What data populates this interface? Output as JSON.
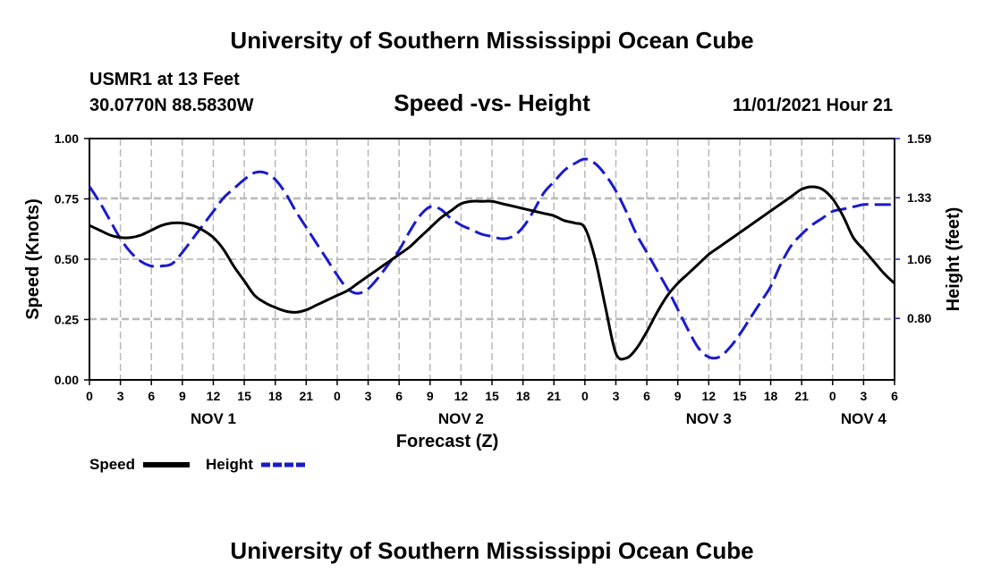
{
  "header": {
    "title": "University of Southern Mississippi Ocean Cube",
    "station": "USMR1 at 13 Feet",
    "coords": "30.0770N  88.5830W",
    "datetime": "11/01/2021 Hour 21",
    "footer_title": "University of Southern Mississippi Ocean Cube"
  },
  "colors": {
    "speed": "#000000",
    "height": "#1a1acc",
    "grid": "#b8b8b8"
  },
  "chart_data": {
    "type": "line",
    "title": "Speed -vs- Height",
    "xlabel": "Forecast (Z)",
    "ylabel": "Speed (Knots)",
    "y2label": "Height (feet)",
    "x_range_hours": [
      0,
      78
    ],
    "ylim": [
      0,
      1.0
    ],
    "y2lim": [
      0.53,
      1.59
    ],
    "x_tick_labels": [
      "0",
      "3",
      "6",
      "9",
      "12",
      "15",
      "18",
      "21",
      "0",
      "3",
      "6",
      "9",
      "12",
      "15",
      "18",
      "21",
      "0",
      "3",
      "6",
      "9",
      "12",
      "15",
      "18",
      "21",
      "0",
      "3",
      "6"
    ],
    "day_labels": [
      {
        "label": "NOV 1",
        "hour": 12
      },
      {
        "label": "NOV 2",
        "hour": 36
      },
      {
        "label": "NOV 3",
        "hour": 60
      },
      {
        "label": "NOV 4",
        "hour": 75
      }
    ],
    "y_ticks": [
      "0.00",
      "0.25",
      "0.50",
      "0.75",
      "1.00"
    ],
    "y_tick_values": [
      0,
      0.25,
      0.5,
      0.75,
      1.0
    ],
    "y2_ticks": [
      "0.80",
      "1.06",
      "1.33",
      "1.59"
    ],
    "y2_tick_values": [
      0.8,
      1.06,
      1.33,
      1.59
    ],
    "series": [
      {
        "name": "Speed",
        "axis": "left",
        "x": [
          0,
          1,
          2,
          3,
          4,
          5,
          6,
          7,
          8,
          9,
          10,
          11,
          12,
          13,
          14,
          15,
          16,
          17,
          18,
          19,
          20,
          21,
          22,
          23,
          24,
          25,
          26,
          27,
          28,
          29,
          30,
          31,
          32,
          33,
          34,
          35,
          36,
          37,
          38,
          39,
          40,
          41,
          42,
          43,
          44,
          45,
          46,
          47,
          48,
          49,
          50,
          51,
          52,
          53,
          54,
          55,
          56,
          57,
          58,
          59,
          60,
          61,
          62,
          63,
          64,
          65,
          66,
          67,
          68,
          69,
          70,
          71,
          72,
          73,
          74,
          75,
          76,
          77,
          78
        ],
        "values": [
          0.64,
          0.62,
          0.6,
          0.59,
          0.59,
          0.6,
          0.62,
          0.64,
          0.65,
          0.65,
          0.64,
          0.62,
          0.59,
          0.54,
          0.47,
          0.41,
          0.35,
          0.32,
          0.3,
          0.285,
          0.28,
          0.29,
          0.31,
          0.33,
          0.35,
          0.37,
          0.4,
          0.43,
          0.46,
          0.49,
          0.52,
          0.55,
          0.59,
          0.63,
          0.67,
          0.7,
          0.73,
          0.74,
          0.74,
          0.74,
          0.73,
          0.72,
          0.71,
          0.7,
          0.69,
          0.68,
          0.66,
          0.65,
          0.63,
          0.5,
          0.3,
          0.11,
          0.09,
          0.13,
          0.2,
          0.28,
          0.35,
          0.4,
          0.44,
          0.48,
          0.52,
          0.55,
          0.58,
          0.61,
          0.64,
          0.67,
          0.7,
          0.73,
          0.76,
          0.79,
          0.8,
          0.79,
          0.75,
          0.68,
          0.59,
          0.54,
          0.49,
          0.44,
          0.4
        ]
      },
      {
        "name": "Height",
        "axis": "right",
        "x": [
          0,
          1,
          2,
          3,
          4,
          5,
          6,
          7,
          8,
          9,
          10,
          11,
          12,
          13,
          14,
          15,
          16,
          17,
          18,
          19,
          20,
          21,
          22,
          23,
          24,
          25,
          26,
          27,
          28,
          29,
          30,
          31,
          32,
          33,
          34,
          35,
          36,
          37,
          38,
          39,
          40,
          41,
          42,
          43,
          44,
          45,
          46,
          47,
          48,
          49,
          50,
          51,
          52,
          53,
          54,
          55,
          56,
          57,
          58,
          59,
          60,
          61,
          62,
          63,
          64,
          65,
          66,
          67,
          68,
          69,
          70,
          71,
          72,
          73,
          74,
          75,
          76,
          77,
          78
        ],
        "values": [
          1.38,
          1.31,
          1.23,
          1.15,
          1.09,
          1.05,
          1.03,
          1.03,
          1.04,
          1.09,
          1.15,
          1.21,
          1.27,
          1.33,
          1.37,
          1.41,
          1.44,
          1.44,
          1.41,
          1.35,
          1.27,
          1.2,
          1.13,
          1.06,
          0.99,
          0.93,
          0.91,
          0.93,
          0.98,
          1.04,
          1.1,
          1.18,
          1.25,
          1.29,
          1.28,
          1.24,
          1.21,
          1.19,
          1.17,
          1.16,
          1.15,
          1.16,
          1.2,
          1.27,
          1.35,
          1.4,
          1.45,
          1.48,
          1.5,
          1.48,
          1.43,
          1.36,
          1.27,
          1.17,
          1.09,
          1.01,
          0.93,
          0.84,
          0.75,
          0.67,
          0.63,
          0.63,
          0.67,
          0.73,
          0.8,
          0.87,
          0.94,
          1.04,
          1.12,
          1.17,
          1.21,
          1.24,
          1.27,
          1.28,
          1.29,
          1.3,
          1.3,
          1.3,
          1.3
        ]
      }
    ],
    "legend": {
      "position": "bottom-left",
      "items": [
        {
          "label": "Speed",
          "style": "solid"
        },
        {
          "label": "Height",
          "style": "dashed"
        }
      ]
    }
  }
}
